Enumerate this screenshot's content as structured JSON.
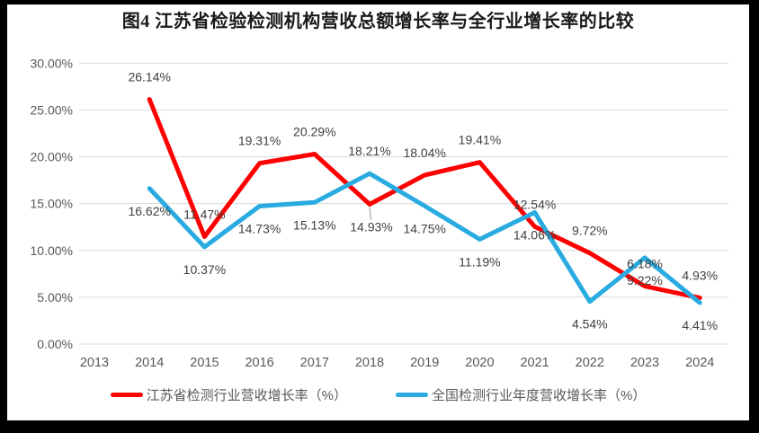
{
  "chart_data": {
    "type": "line",
    "title": "图4 江苏省检验检测机构营收总额增长率与全行业增长率的比较",
    "categories": [
      "2013",
      "2014",
      "2015",
      "2016",
      "2017",
      "2018",
      "2019",
      "2020",
      "2021",
      "2022",
      "2023",
      "2024"
    ],
    "series": [
      {
        "name": "江苏省检测行业营收增长率（%）",
        "color": "#FF0000",
        "values": [
          null,
          26.14,
          11.47,
          19.31,
          20.29,
          14.93,
          18.04,
          19.41,
          12.54,
          9.72,
          6.18,
          4.93
        ],
        "label_positions": [
          null,
          "above",
          "above",
          "above",
          "above",
          "below-leader",
          "above",
          "above",
          "above",
          "above",
          "above",
          "above"
        ]
      },
      {
        "name": "全国检测行业年度营收增长率（%）",
        "color": "#29ABE2",
        "values": [
          null,
          16.62,
          10.37,
          14.73,
          15.13,
          18.21,
          14.75,
          11.19,
          14.06,
          4.54,
          9.22,
          4.41
        ],
        "label_positions": [
          null,
          "below",
          "below",
          "below",
          "below",
          "above",
          "below",
          "below",
          "below",
          "below",
          "below",
          "below"
        ]
      }
    ],
    "xlabel": "",
    "ylabel": "",
    "ylim": [
      0,
      30
    ],
    "ytick_step": 5,
    "ytick_labels": [
      "0.00%",
      "5.00%",
      "10.00%",
      "15.00%",
      "20.00%",
      "25.00%",
      "30.00%"
    ],
    "grid": true,
    "legend_position": "bottom",
    "data_label_format": "0.00%"
  },
  "colors": {
    "frame": "#000000",
    "chart_background": "#FFFFFF",
    "gridline": "#D9D9D9",
    "axis_text": "#595959",
    "data_label_text": "#3F3F3F",
    "leader_line": "#A6A6A6",
    "title_text": "#1A1A1A"
  }
}
